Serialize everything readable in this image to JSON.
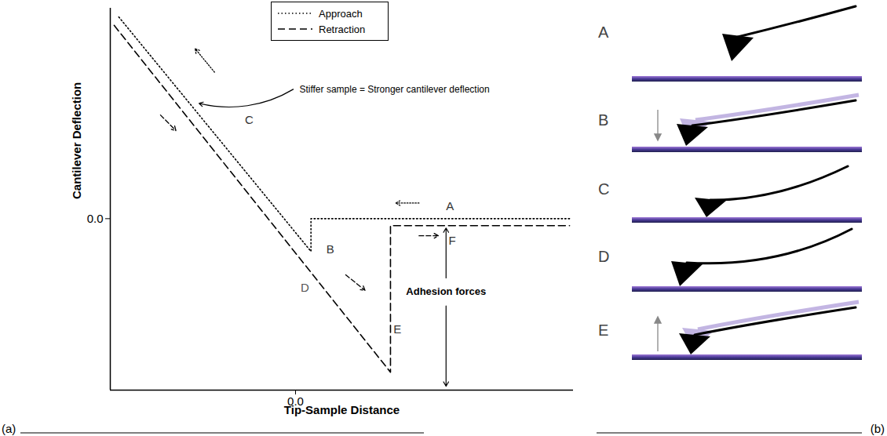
{
  "chart_data": {
    "type": "line",
    "panel_label": "(a)",
    "x_label": "Tip-Sample Distance",
    "y_label": "Cantilever Deflection",
    "xlim": [
      -2.4,
      3.6
    ],
    "ylim": [
      -2.2,
      2.7
    ],
    "xticks": [
      0
    ],
    "yticks": [
      0
    ],
    "legend": "top",
    "series": [
      {
        "name": "Approach",
        "color": "#000000",
        "line_style": "dotted",
        "x": [
          3.55,
          0.2,
          0.2,
          -2.3
        ],
        "values": [
          0,
          0,
          -0.42,
          2.6
        ]
      },
      {
        "name": "Retraction",
        "color": "#000000",
        "line_style": "dashed",
        "x": [
          -2.35,
          1.23,
          1.23,
          3.55
        ],
        "values": [
          2.48,
          -1.97,
          -0.09,
          -0.09
        ]
      }
    ],
    "annotations": [
      "A",
      "B",
      "C",
      "D",
      "E",
      "F",
      "Stiffer sample = Stronger cantilever deflection",
      "Adhesion forces"
    ]
  },
  "figure_b": {
    "panel_label": "(b)",
    "frames": [
      "A",
      "B",
      "C",
      "D",
      "E"
    ]
  }
}
